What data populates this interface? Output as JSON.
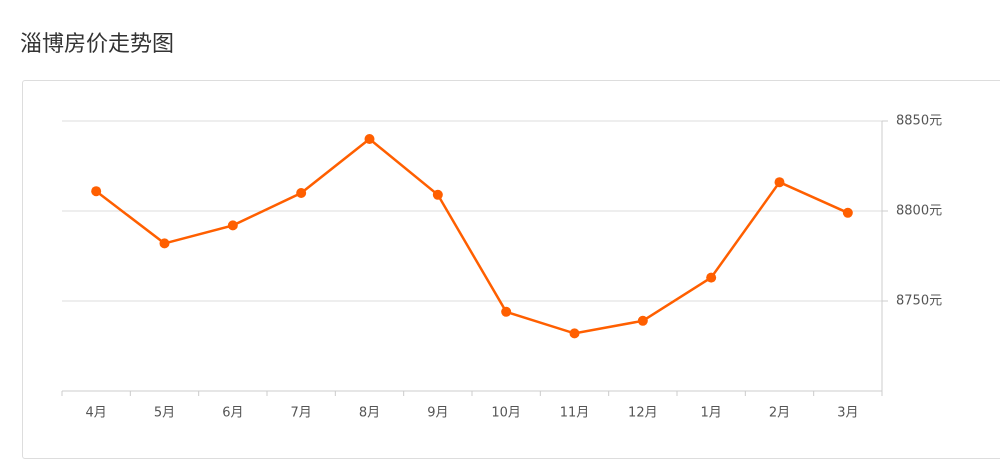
{
  "chart_data": {
    "type": "line",
    "title": "淄博房价走势图",
    "categories": [
      "4月",
      "5月",
      "6月",
      "7月",
      "8月",
      "9月",
      "10月",
      "11月",
      "12月",
      "1月",
      "2月",
      "3月"
    ],
    "series": [
      {
        "name": "房价",
        "color": "#ff5f00",
        "values": [
          8811,
          8782,
          8792,
          8810,
          8840,
          8809,
          8744,
          8732,
          8739,
          8763,
          8816,
          8799
        ]
      }
    ],
    "ylim": [
      8700,
      8850
    ],
    "yticks": [
      {
        "value": 8750,
        "label": "8750元"
      },
      {
        "value": 8800,
        "label": "8800元"
      },
      {
        "value": 8850,
        "label": "8850元"
      }
    ],
    "grid": true
  }
}
